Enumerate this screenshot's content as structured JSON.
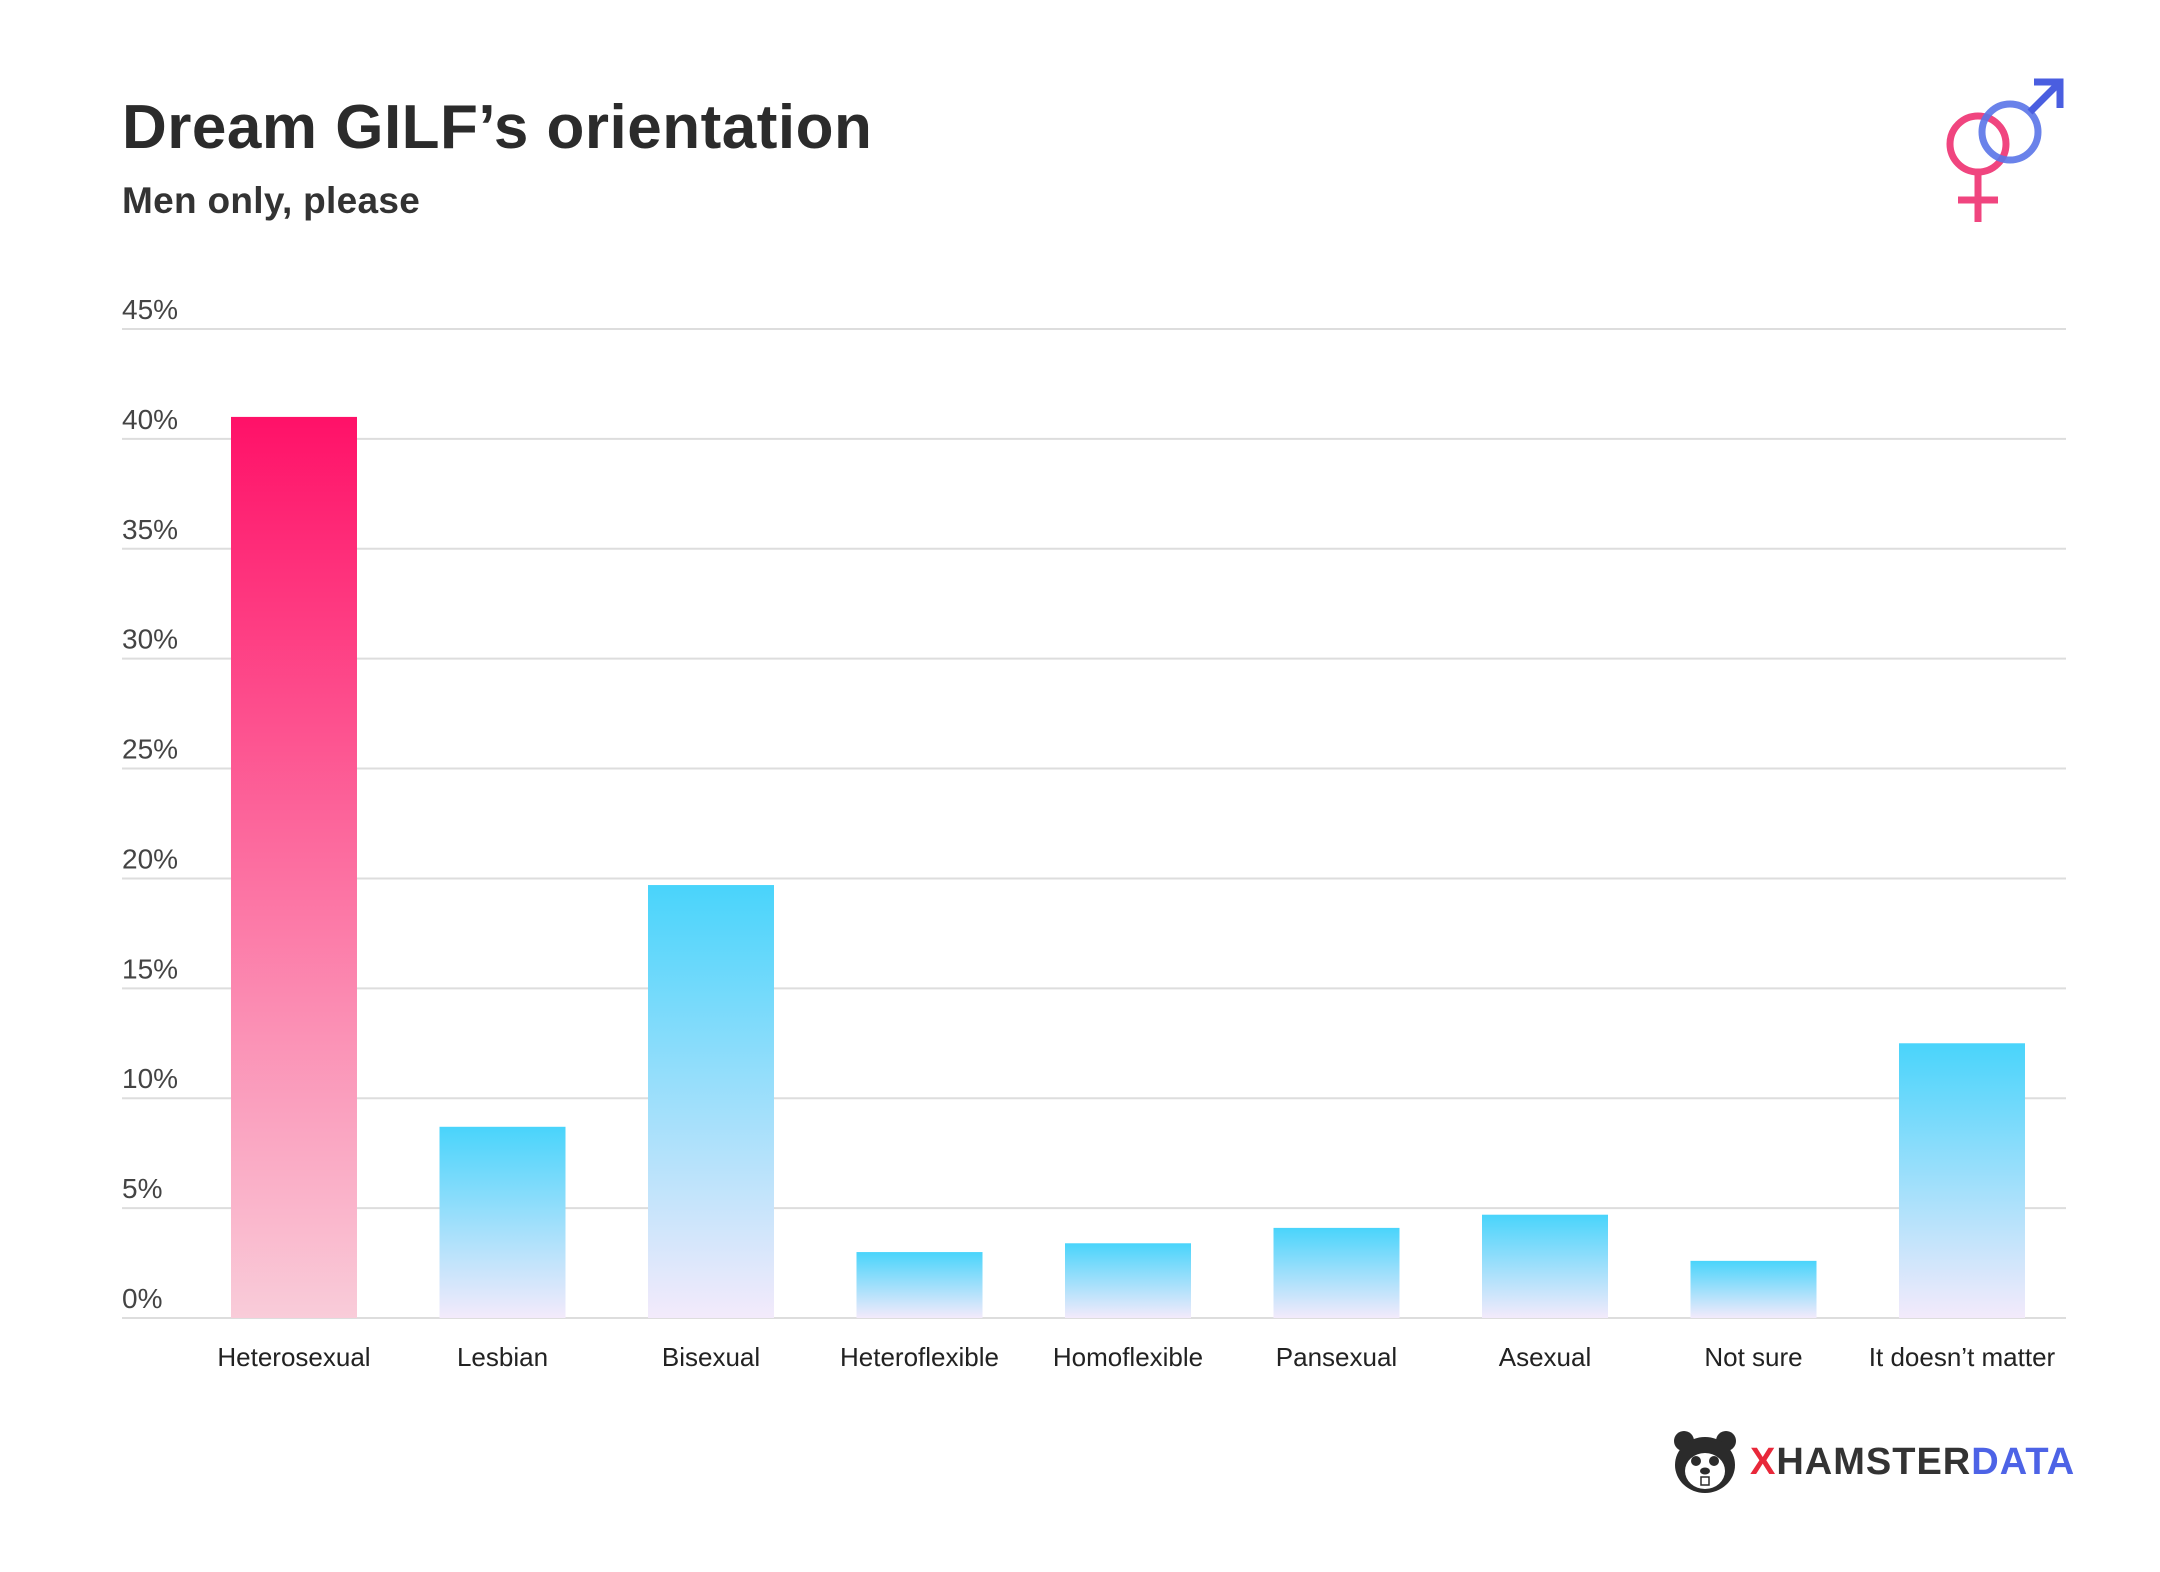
{
  "colors": {
    "primary_top": "#ff1168",
    "primary_bottom": "#f9ccd9",
    "secondary_top": "#49d4fb",
    "secondary_bottom": "#f3eafb",
    "grid": "#dddddd",
    "female_symbol": "#f0457f",
    "male_symbol": "#4a5ee0"
  },
  "icons": {
    "header": "gender-symbols-icon",
    "brand": "hamster-logo-icon"
  },
  "brand": {
    "x": "X",
    "hamster": "HAMSTER",
    "data": "DATA"
  },
  "chart_data": {
    "type": "bar",
    "title": "Dream GILF’s orientation",
    "subtitle": "Men only, please",
    "xlabel": "",
    "ylabel": "",
    "ylim": [
      0,
      45
    ],
    "yticks": [
      0,
      5,
      10,
      15,
      20,
      25,
      30,
      35,
      40,
      45
    ],
    "ytick_labels": [
      "0%",
      "5%",
      "10%",
      "15%",
      "20%",
      "25%",
      "30%",
      "35%",
      "40%",
      "45%"
    ],
    "grid": true,
    "categories": [
      "Heterosexual",
      "Lesbian",
      "Bisexual",
      "Heteroflexible",
      "Homoflexible",
      "Pansexual",
      "Asexual",
      "Not sure",
      "It doesn’t matter"
    ],
    "values": [
      41.0,
      8.7,
      19.7,
      3.0,
      3.4,
      4.1,
      4.7,
      2.6,
      12.5
    ],
    "highlight_index": 0
  }
}
